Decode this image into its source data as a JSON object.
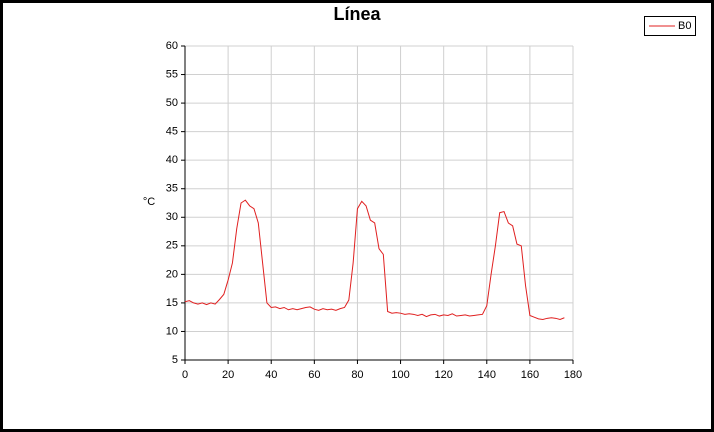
{
  "chart_data": {
    "type": "line",
    "title": "Línea",
    "ylabel": "°C",
    "x": [
      0,
      2,
      4,
      6,
      8,
      10,
      12,
      14,
      16,
      18,
      20,
      22,
      24,
      26,
      28,
      30,
      32,
      34,
      36,
      38,
      40,
      42,
      44,
      46,
      48,
      50,
      52,
      54,
      56,
      58,
      60,
      62,
      64,
      66,
      68,
      70,
      72,
      74,
      76,
      78,
      80,
      82,
      84,
      86,
      88,
      90,
      92,
      94,
      96,
      98,
      100,
      102,
      104,
      106,
      108,
      110,
      112,
      114,
      116,
      118,
      120,
      122,
      124,
      126,
      128,
      130,
      132,
      134,
      136,
      138,
      140,
      142,
      144,
      146,
      148,
      150,
      152,
      154,
      156,
      158,
      160,
      162,
      164,
      166,
      168,
      170,
      172,
      174,
      176
    ],
    "series": [
      {
        "name": "B0",
        "color": "#e02020",
        "values": [
          15.2,
          15.4,
          15.0,
          14.8,
          15.0,
          14.7,
          15.0,
          14.8,
          15.6,
          16.5,
          19,
          22,
          28,
          32.5,
          33,
          32,
          31.5,
          29,
          22,
          15,
          14.2,
          14.3,
          14.0,
          14.2,
          13.8,
          14.0,
          13.8,
          14.0,
          14.2,
          14.3,
          13.9,
          13.7,
          14.0,
          13.8,
          13.9,
          13.7,
          14.0,
          14.2,
          15.5,
          22,
          31.5,
          32.8,
          32,
          29.5,
          29,
          24.5,
          23.5,
          13.5,
          13.2,
          13.3,
          13.2,
          13.0,
          13.1,
          13.0,
          12.8,
          13.0,
          12.6,
          12.9,
          13.0,
          12.7,
          12.9,
          12.8,
          13.1,
          12.7,
          12.8,
          12.9,
          12.7,
          12.8,
          12.9,
          13.0,
          14.5,
          20,
          25,
          30.8,
          31,
          29,
          28.5,
          25.3,
          25,
          18,
          12.8,
          12.5,
          12.2,
          12.1,
          12.3,
          12.4,
          12.3,
          12.1,
          12.4
        ]
      }
    ],
    "xlim": [
      0,
      180
    ],
    "xticks": [
      0,
      20,
      40,
      60,
      80,
      100,
      120,
      140,
      160,
      180
    ],
    "ylim": [
      5,
      60
    ],
    "yticks": [
      5,
      10,
      15,
      20,
      25,
      30,
      35,
      40,
      45,
      50,
      55,
      60
    ],
    "grid": true,
    "legend": "top-right"
  }
}
